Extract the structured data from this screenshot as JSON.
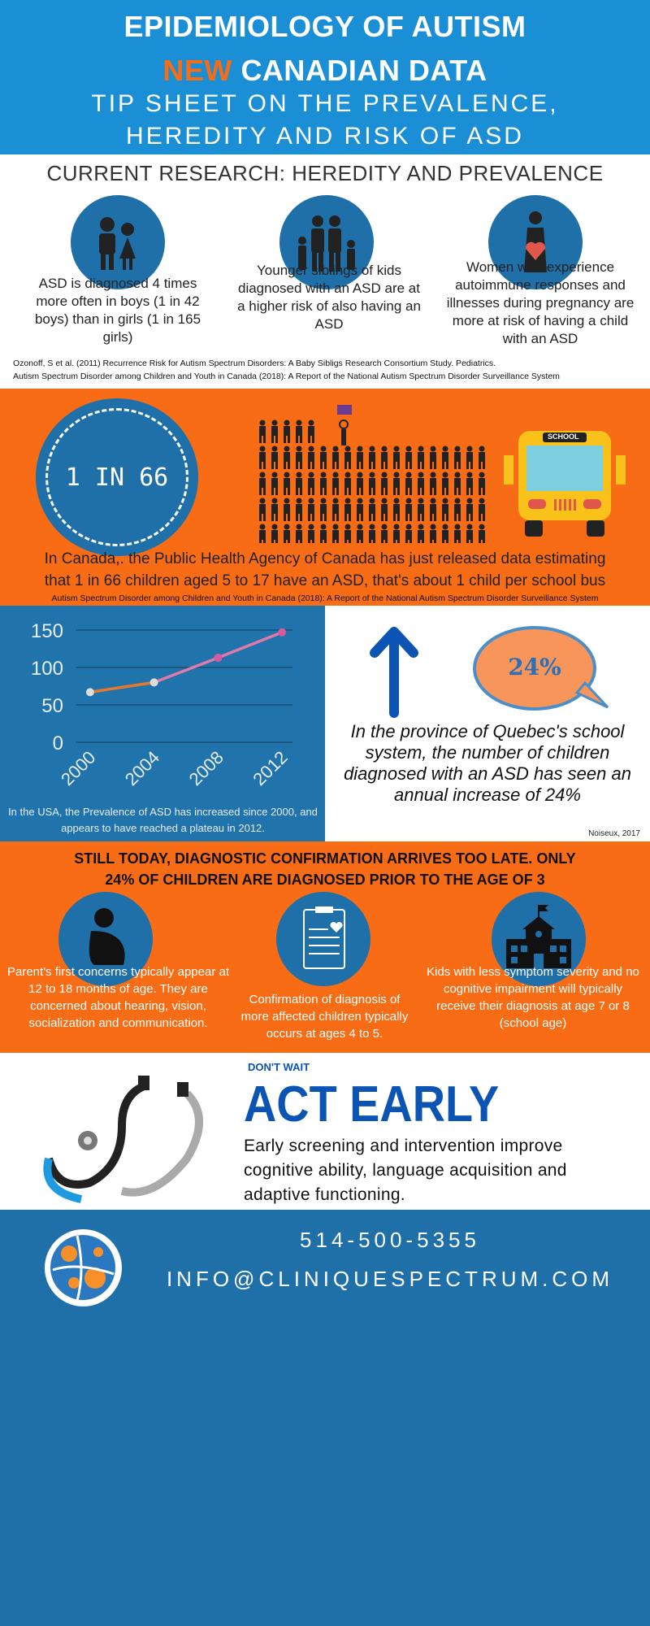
{
  "header": {
    "title_line1": "EPIDEMIOLOGY OF AUTISM",
    "title_new": "NEW",
    "title_line2_rest": "CANADIAN DATA",
    "subtitle_line1": "TIP SHEET ON THE PREVALENCE,",
    "subtitle_line2": "HEREDITY AND RISK OF ASD"
  },
  "research": {
    "heading": "CURRENT RESEARCH: HEREDITY AND PREVALENCE",
    "items": [
      {
        "icon": "boy-girl-icon",
        "text": "ASD is diagnosed 4 times more often in boys  (1 in 42 boys) than in girls  (1 in 165 girls)"
      },
      {
        "icon": "family-icon",
        "text": "Younger siblings of kids diagnosed with an ASD are at a higher risk of also having an ASD"
      },
      {
        "icon": "pregnant-woman-icon",
        "text": "Women who experience autoimmune responses and illnesses during pregnancy are more at risk of having a child with an ASD"
      }
    ],
    "citation1": "Ozonoff, S et al. (2011) Recurrence Risk for Autism Spectrum Disorders: A Baby Sibligs Research Consortium Study. Pediatrics.",
    "citation2": "Autism Spectrum Disorder among Children and Youth in Canada (2018): A Report of the National Autism Spectrum Disorder Surveillance System"
  },
  "prevalence": {
    "ratio": "1 IN 66",
    "bus_label": "SCHOOL",
    "text_line1": "In Canada,. the Public Health Agency of Canada has just released data estimating",
    "text_line2": "that 1 in 66 children aged 5 to 17 have an ASD, that's about 1 child per school bus",
    "citation": "Autism Spectrum Disorder among Children and Youth in Canada (2018): A Report of the National Autism Spectrum Disorder Surveillance System"
  },
  "chart_data": {
    "type": "line",
    "x": [
      "2000",
      "2004",
      "2008",
      "2012"
    ],
    "values": [
      67,
      80,
      113,
      147
    ],
    "ylim": [
      0,
      150
    ],
    "yticks": [
      "0",
      "50",
      "100",
      "150"
    ],
    "grid": true,
    "caption": "In the USA, the Prevalence of ASD has increased since 2000, and appears to have reached a plateau in 2012.",
    "colors": {
      "start": "#e8792a",
      "end": "#d65aa0"
    }
  },
  "quebec": {
    "bubble": "24%",
    "text": "In the province of Quebec's school system, the number of children diagnosed with an ASD has seen an annual increase of 24%",
    "citation": "Noiseux, 2017"
  },
  "late": {
    "heading_line1": "STILL TODAY, DIAGNOSTIC CONFIRMATION ARRIVES TOO LATE.  ONLY",
    "heading_line2": "24% OF CHILDREN ARE DIAGNOSED PRIOR TO THE AGE OF 3",
    "items": [
      {
        "icon": "sitting-child-icon",
        "text": "Parent's first concerns typically appear at 12 to 18 months of age. They are concerned about hearing, vision, socialization and communication."
      },
      {
        "icon": "medical-report-icon",
        "text": "Confirmation of diagnosis of more affected children typically occurs at ages 4 to 5."
      },
      {
        "icon": "school-icon",
        "text": "Kids with less symptom severity and no cognitive impairment will typically receive their diagnosis at age 7 or 8 (school age)"
      }
    ]
  },
  "act": {
    "kicker": "DON'T WAIT",
    "title": "ACT EARLY",
    "text": "Early screening and intervention improve cognitive ability, language acquisition and adaptive functioning."
  },
  "footer": {
    "phone": "514-500-5355",
    "email": "INFO@CLINIQUESPECTRUM.COM"
  }
}
